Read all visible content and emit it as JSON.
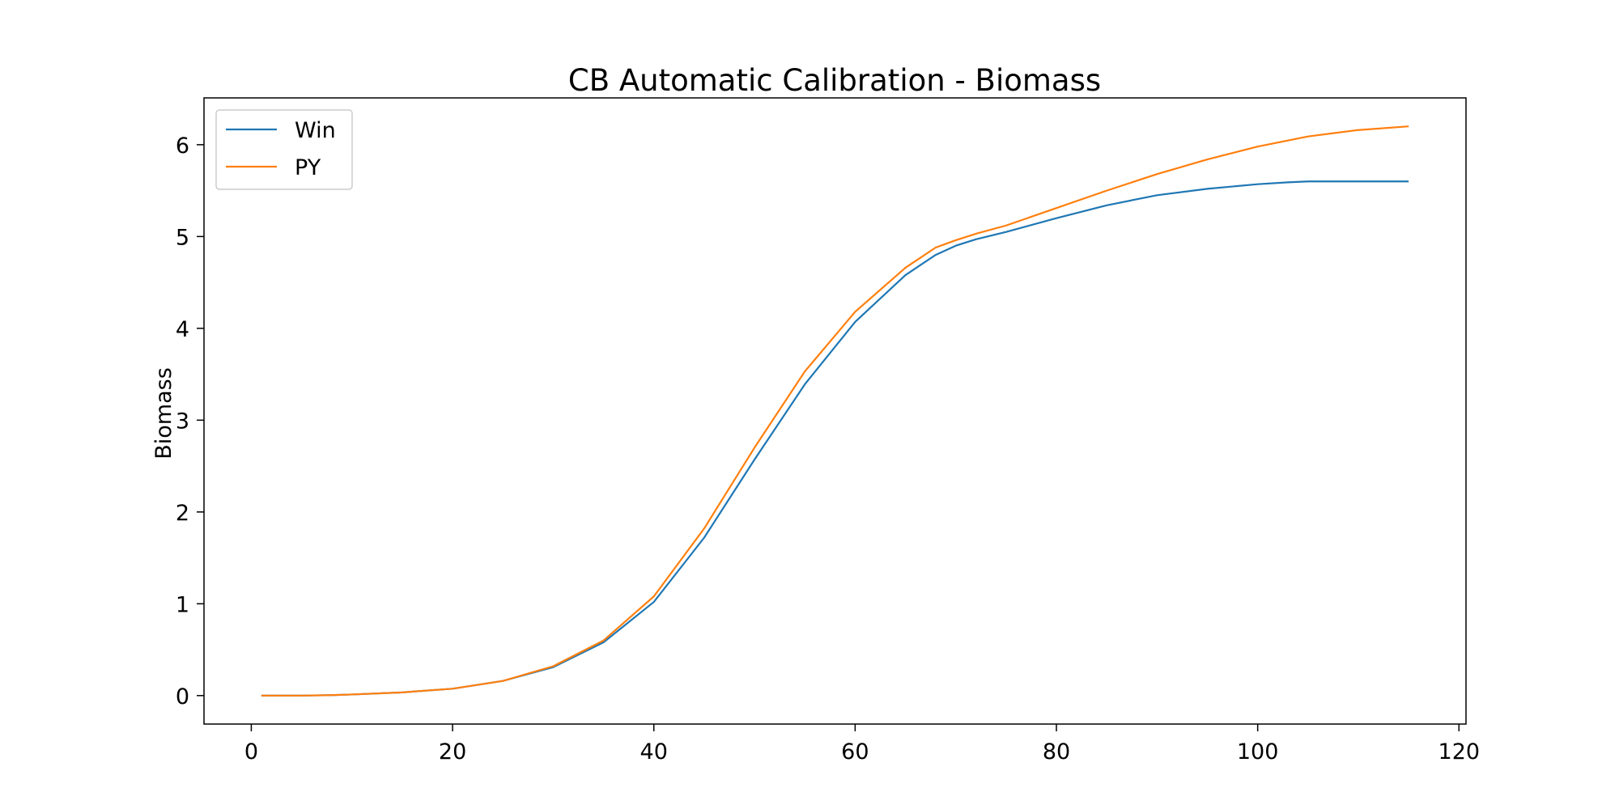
{
  "chart_data": {
    "type": "line",
    "title": "CB Automatic Calibration - Biomass",
    "xlabel": "",
    "ylabel": "Biomass",
    "xlim": [
      -4.7,
      120.7
    ],
    "ylim": [
      -0.31,
      6.51
    ],
    "xticks": [
      0,
      20,
      40,
      60,
      80,
      100,
      120
    ],
    "yticks": [
      0,
      1,
      2,
      3,
      4,
      5,
      6
    ],
    "grid": false,
    "legend_position": "top-left",
    "series": [
      {
        "name": "Win",
        "color": "#1f77b4",
        "x": [
          1,
          5,
          8,
          10,
          15,
          20,
          25,
          30,
          35,
          40,
          45,
          50,
          55,
          60,
          65,
          68,
          70,
          72,
          75,
          80,
          85,
          90,
          95,
          100,
          103,
          105,
          110,
          115
        ],
        "y": [
          0,
          0,
          0.005,
          0.012,
          0.035,
          0.075,
          0.16,
          0.31,
          0.58,
          1.02,
          1.72,
          2.57,
          3.39,
          4.07,
          4.58,
          4.8,
          4.9,
          4.97,
          5.05,
          5.2,
          5.34,
          5.45,
          5.52,
          5.57,
          5.59,
          5.6,
          5.6,
          5.6
        ]
      },
      {
        "name": "PY",
        "color": "#ff7f0e",
        "x": [
          1,
          5,
          8,
          10,
          15,
          20,
          25,
          30,
          35,
          40,
          45,
          50,
          55,
          60,
          65,
          68,
          70,
          72,
          75,
          80,
          85,
          90,
          95,
          100,
          105,
          110,
          115
        ],
        "y": [
          0,
          0,
          0.005,
          0.012,
          0.035,
          0.075,
          0.16,
          0.32,
          0.6,
          1.08,
          1.82,
          2.7,
          3.53,
          4.18,
          4.66,
          4.88,
          4.96,
          5.03,
          5.12,
          5.31,
          5.5,
          5.68,
          5.84,
          5.98,
          6.09,
          6.16,
          6.2
        ]
      }
    ]
  }
}
